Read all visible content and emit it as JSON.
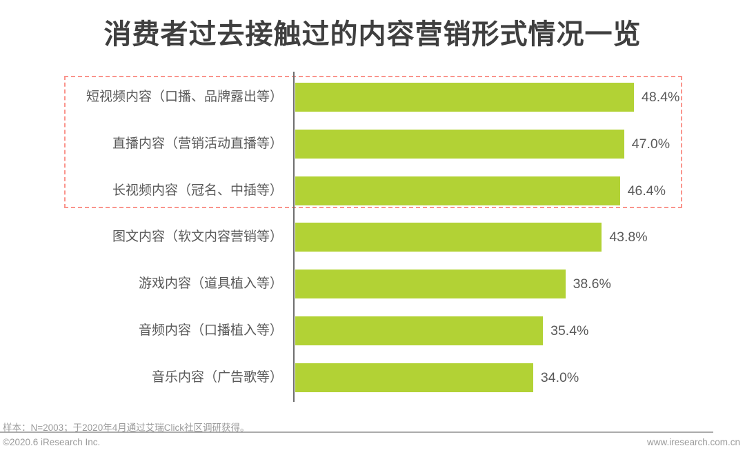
{
  "title": "消费者过去接触过的内容营销形式情况一览",
  "chart_data": {
    "type": "bar",
    "orientation": "horizontal",
    "title": "消费者过去接触过的内容营销形式情况一览",
    "categories": [
      "短视频内容（口播、品牌露出等）",
      "直播内容（营销活动直播等）",
      "长视频内容（冠名、中插等）",
      "图文内容（软文内容营销等）",
      "游戏内容（道具植入等）",
      "音频内容（口播植入等）",
      "音乐内容（广告歌等）"
    ],
    "values": [
      48.4,
      47.0,
      46.4,
      43.8,
      38.6,
      35.4,
      34.0
    ],
    "unit": "%",
    "xlim": [
      0,
      50
    ],
    "grid": false,
    "legend": false,
    "bar_color": "#b2d235",
    "highlight": {
      "description": "red dashed box around top 3 categories",
      "rows": [
        0,
        1,
        2
      ],
      "color": "#fa948c"
    }
  },
  "footer": {
    "sample_note": "样本：N=2003；于2020年4月通过艾瑞Click社区调研获得。",
    "copyright": "©2020.6 iResearch Inc.",
    "website": "www.iresearch.com.cn"
  }
}
